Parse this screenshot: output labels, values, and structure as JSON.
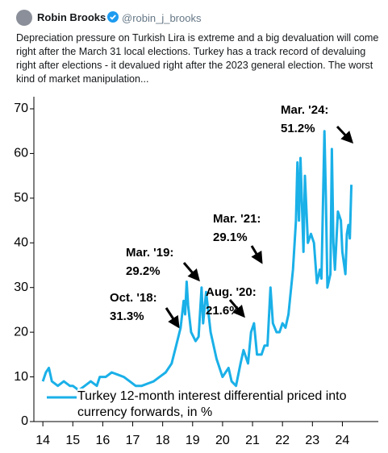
{
  "tweet": {
    "name": "Robin Brooks",
    "handle": "@robin_j_brooks",
    "text": "Depreciation pressure on Turkish Lira is extreme and a big devaluation will come right after the March 31 local elections. Turkey has a track record of devaluing right after elections - it devalued right after the 2023 general election. The worst kind of market manipulation..."
  },
  "chart_data": {
    "type": "line",
    "x": [
      14.0,
      14.1,
      14.2,
      14.3,
      14.5,
      14.7,
      14.9,
      15.0,
      15.2,
      15.4,
      15.6,
      15.8,
      15.9,
      16.1,
      16.3,
      16.5,
      16.7,
      16.9,
      17.1,
      17.3,
      17.5,
      17.7,
      17.9,
      18.1,
      18.3,
      18.45,
      18.6,
      18.7,
      18.75,
      18.8,
      18.85,
      18.95,
      19.1,
      19.2,
      19.3,
      19.35,
      19.45,
      19.6,
      19.8,
      20.0,
      20.2,
      20.3,
      20.45,
      20.6,
      20.7,
      20.85,
      20.95,
      21.05,
      21.15,
      21.3,
      21.4,
      21.5,
      21.6,
      21.68,
      21.8,
      21.9,
      22.0,
      22.1,
      22.2,
      22.35,
      22.45,
      22.5,
      22.55,
      22.6,
      22.7,
      22.75,
      22.85,
      22.95,
      23.05,
      23.15,
      23.25,
      23.3,
      23.35,
      23.4,
      23.45,
      23.5,
      23.6,
      23.65,
      23.7,
      23.75,
      23.85,
      23.95,
      24.0,
      24.1,
      24.15,
      24.2,
      24.25,
      24.3
    ],
    "series": [
      {
        "name": "Turkey 12-month interest differential priced into currency forwards, in %",
        "color": "#1ab0e8",
        "values": [
          9,
          11,
          12,
          9,
          8,
          9,
          8,
          8,
          7,
          8,
          9,
          8,
          10,
          10,
          11,
          10.5,
          10,
          9,
          8,
          8,
          8.5,
          9,
          10,
          11,
          13,
          17,
          21,
          27,
          24,
          31.3,
          26,
          20,
          18,
          19,
          30,
          22,
          29,
          20,
          14,
          10,
          12,
          9,
          8,
          13,
          16,
          13,
          20,
          22,
          15,
          15,
          17,
          17,
          30,
          22,
          20,
          20,
          22,
          21,
          24,
          34,
          45,
          58,
          45,
          59,
          38,
          55,
          40,
          42,
          40,
          31,
          34,
          32,
          48,
          65,
          50,
          30,
          33,
          61,
          40,
          34,
          47,
          45,
          38,
          33,
          42,
          44,
          41,
          53
        ]
      }
    ],
    "xlim": [
      13.7,
      25.2
    ],
    "xticks": [
      14,
      15,
      16,
      17,
      18,
      19,
      20,
      21,
      22,
      23,
      24
    ],
    "ylim": [
      0,
      70
    ],
    "yticks": [
      0,
      10,
      20,
      30,
      40,
      50,
      60,
      70
    ],
    "annotations": [
      {
        "label": "Oct. '18:",
        "value": "31.3%"
      },
      {
        "label": "Mar. '19:",
        "value": "29.2%"
      },
      {
        "label": "Aug. '20:",
        "value": "21.6%"
      },
      {
        "label": "Mar. '21:",
        "value": "29.1%"
      },
      {
        "label": "Mar. '24:",
        "value": "51.2%"
      }
    ]
  }
}
